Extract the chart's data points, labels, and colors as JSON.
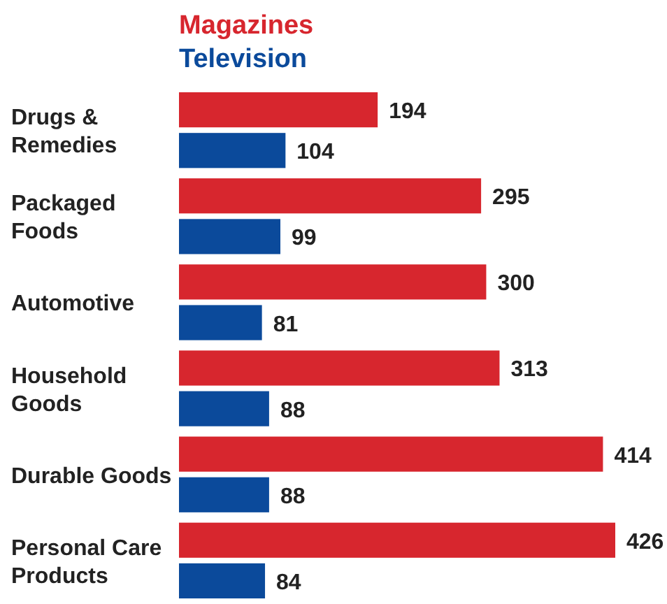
{
  "chart_data": {
    "type": "bar",
    "orientation": "horizontal",
    "categories": [
      "Drugs & Remedies",
      "Packaged Foods",
      "Automotive",
      "Household Goods",
      "Durable Goods",
      "Personal Care Products"
    ],
    "series": [
      {
        "name": "Magazines",
        "color": "#d7262e",
        "values": [
          194,
          295,
          300,
          313,
          414,
          426
        ]
      },
      {
        "name": "Television",
        "color": "#0b4a9b",
        "values": [
          104,
          99,
          81,
          88,
          88,
          84
        ]
      }
    ],
    "data_labels": true,
    "legend": "top"
  }
}
